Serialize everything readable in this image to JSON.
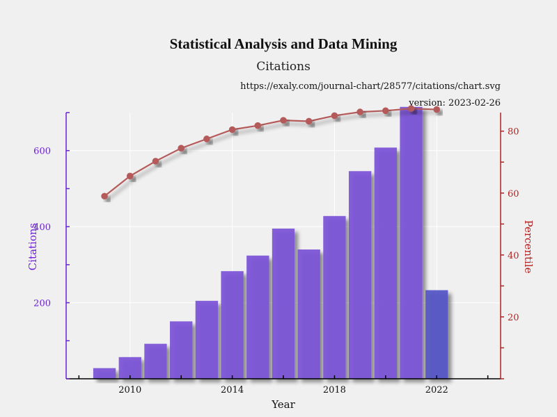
{
  "chart_data": {
    "type": "bar",
    "title": "Statistical Analysis and Data Mining",
    "subtitle": "Citations",
    "source_url": "https://exaly.com/journal-chart/28577/citations/chart.svg",
    "version": "version: 2023-02-26",
    "xlabel": "Year",
    "ylabel_left": "Citations",
    "ylabel_right": "Percentile",
    "xlim": [
      2007.5,
      2024.5
    ],
    "x_ticks": [
      2010,
      2014,
      2018,
      2022
    ],
    "ylim_left": [
      0,
      700
    ],
    "y_ticks_left": [
      200,
      400,
      600
    ],
    "ylim_right": [
      0,
      86
    ],
    "y_ticks_right": [
      20,
      40,
      60,
      80
    ],
    "grid": true,
    "series": [
      {
        "kind": "bar",
        "axis": "left",
        "x": [
          2009,
          2010,
          2011,
          2012,
          2013,
          2014,
          2015,
          2016,
          2017,
          2018,
          2019,
          2020,
          2021,
          2022
        ],
        "values": [
          28,
          57,
          92,
          151,
          205,
          283,
          324,
          395,
          340,
          428,
          546,
          608,
          715,
          233
        ],
        "color": "#7b52d6",
        "highlight_last_color": "#5254c4"
      },
      {
        "kind": "line",
        "axis": "right",
        "x": [
          2009,
          2010,
          2011,
          2012,
          2013,
          2014,
          2015,
          2016,
          2017,
          2018,
          2019,
          2020,
          2021,
          2022
        ],
        "values": [
          59,
          65.5,
          70.3,
          74.5,
          77.5,
          80.5,
          81.8,
          83.5,
          83.2,
          85,
          86.2,
          86.6,
          87.3,
          87
        ],
        "color": "#b55a5a"
      }
    ]
  }
}
